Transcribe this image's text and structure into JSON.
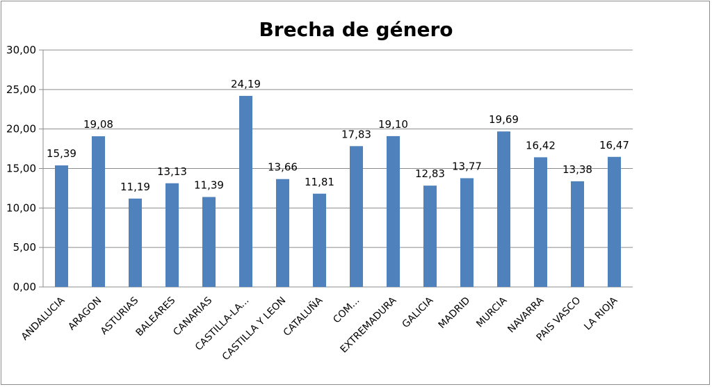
{
  "chart_data": {
    "type": "bar",
    "title": "Brecha de género",
    "xlabel": "",
    "ylabel": "",
    "ylim": [
      0,
      30
    ],
    "yticks": [
      "0,00",
      "5,00",
      "10,00",
      "15,00",
      "20,00",
      "25,00",
      "30,00"
    ],
    "grid": true,
    "legend": "none",
    "bar_color": "#4f81bd",
    "categories": [
      "ANDALUCIA",
      "ARAGON",
      "ASTURIAS",
      "BALEARES",
      "CANARIAS",
      "CASTILLA-LA...",
      "CASTILLA Y LEON",
      "CATALUÑA",
      "COM...",
      "EXTREMADURA",
      "GALICIA",
      "MADRID",
      "MURCIA",
      "NAVARRA",
      "PAIS VASCO",
      "LA RIOJA"
    ],
    "values": [
      15.39,
      19.08,
      11.19,
      13.13,
      11.39,
      24.19,
      13.66,
      11.81,
      17.83,
      19.1,
      12.83,
      13.77,
      19.69,
      16.42,
      13.38,
      16.47
    ],
    "data_labels": [
      "15,39",
      "19,08",
      "11,19",
      "13,13",
      "11,39",
      "24,19",
      "13,66",
      "11,81",
      "17,83",
      "19,10",
      "12,83",
      "13,77",
      "19,69",
      "16,42",
      "13,38",
      "16,47"
    ]
  }
}
